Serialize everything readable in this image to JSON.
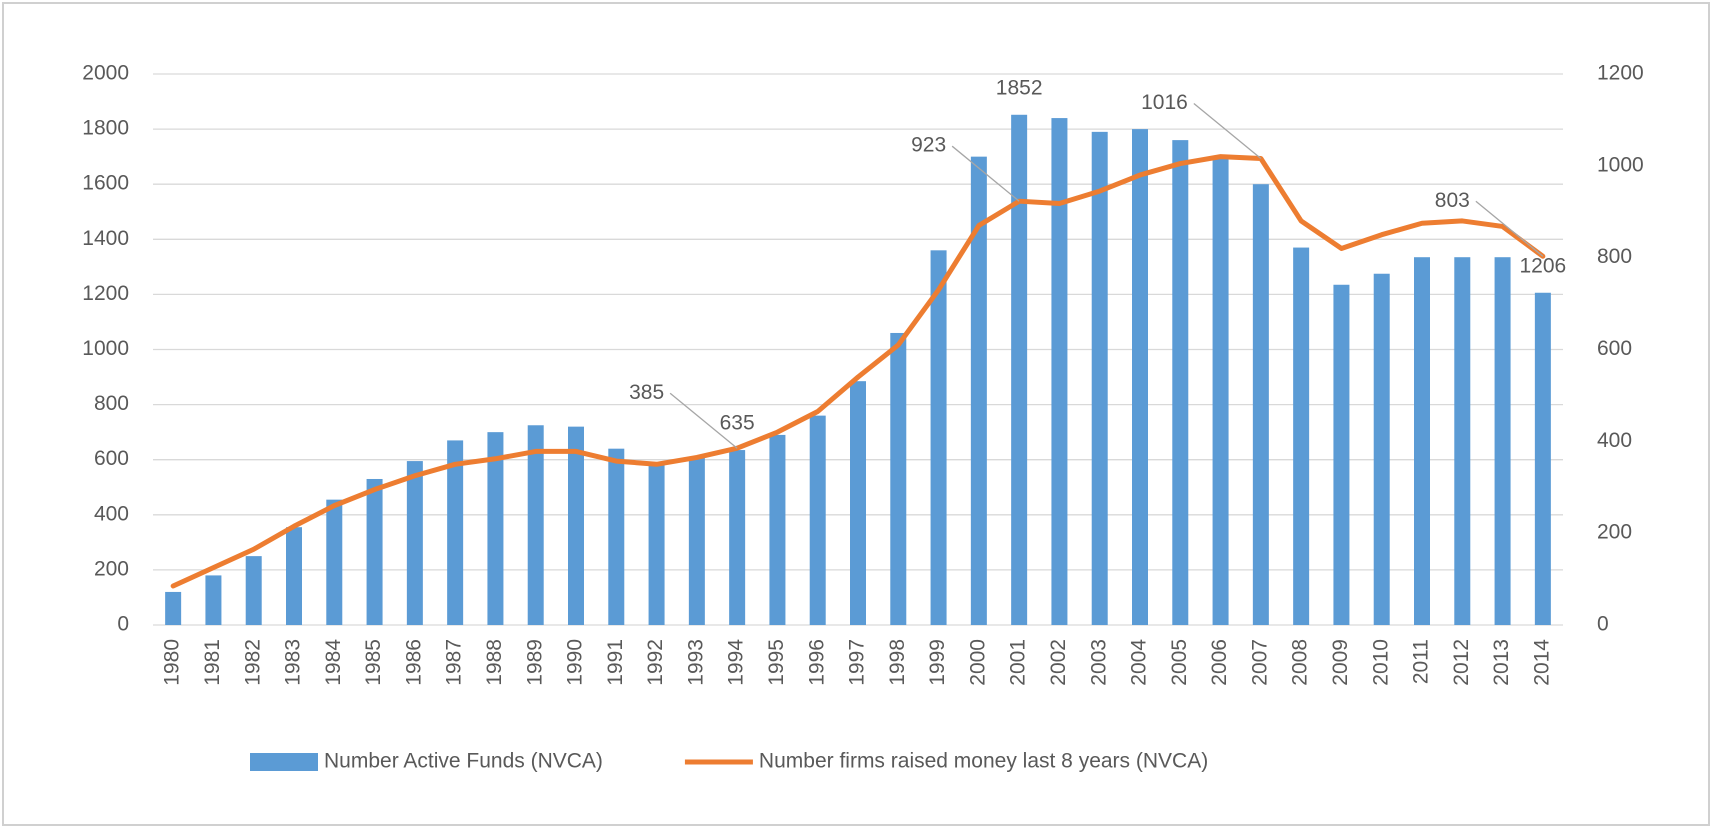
{
  "chart_data": {
    "type": "bar-line",
    "categories": [
      "1980",
      "1981",
      "1982",
      "1983",
      "1984",
      "1985",
      "1986",
      "1987",
      "1988",
      "1989",
      "1990",
      "1991",
      "1992",
      "1993",
      "1994",
      "1995",
      "1996",
      "1997",
      "1998",
      "1999",
      "2000",
      "2001",
      "2002",
      "2003",
      "2004",
      "2005",
      "2006",
      "2007",
      "2008",
      "2009",
      "2010",
      "2011",
      "2012",
      "2013",
      "2014"
    ],
    "series": [
      {
        "name": "Number Active Funds (NVCA)",
        "type": "bar",
        "color": "#5b9bd5",
        "axis": "y",
        "values": [
          120,
          180,
          250,
          355,
          455,
          530,
          595,
          670,
          700,
          725,
          720,
          640,
          590,
          610,
          635,
          690,
          760,
          885,
          1060,
          1360,
          1700,
          1852,
          1840,
          1790,
          1800,
          1760,
          1700,
          1600,
          1370,
          1235,
          1275,
          1335,
          1335,
          1335,
          1206
        ],
        "data_labels": [
          14,
          21,
          34
        ]
      },
      {
        "name": "Number firms raised money last 8 years (NVCA)",
        "type": "line",
        "color": "#ed7d31",
        "axis": "y2",
        "values": [
          85,
          125,
          165,
          215,
          260,
          295,
          325,
          350,
          362,
          378,
          378,
          357,
          350,
          365,
          385,
          420,
          465,
          540,
          610,
          730,
          870,
          923,
          918,
          945,
          980,
          1005,
          1020,
          1016,
          880,
          820,
          850,
          875,
          880,
          868,
          803
        ],
        "data_labels": [
          14,
          21,
          27,
          34
        ]
      }
    ],
    "ylim": [
      0,
      2000
    ],
    "yticks": [
      0,
      200,
      400,
      600,
      800,
      1000,
      1200,
      1400,
      1600,
      1800,
      2000
    ],
    "y2lim": [
      0,
      1200
    ],
    "y2ticks": [
      0,
      200,
      400,
      600,
      800,
      1000,
      1200
    ],
    "grid": true,
    "legend": "bottom"
  }
}
